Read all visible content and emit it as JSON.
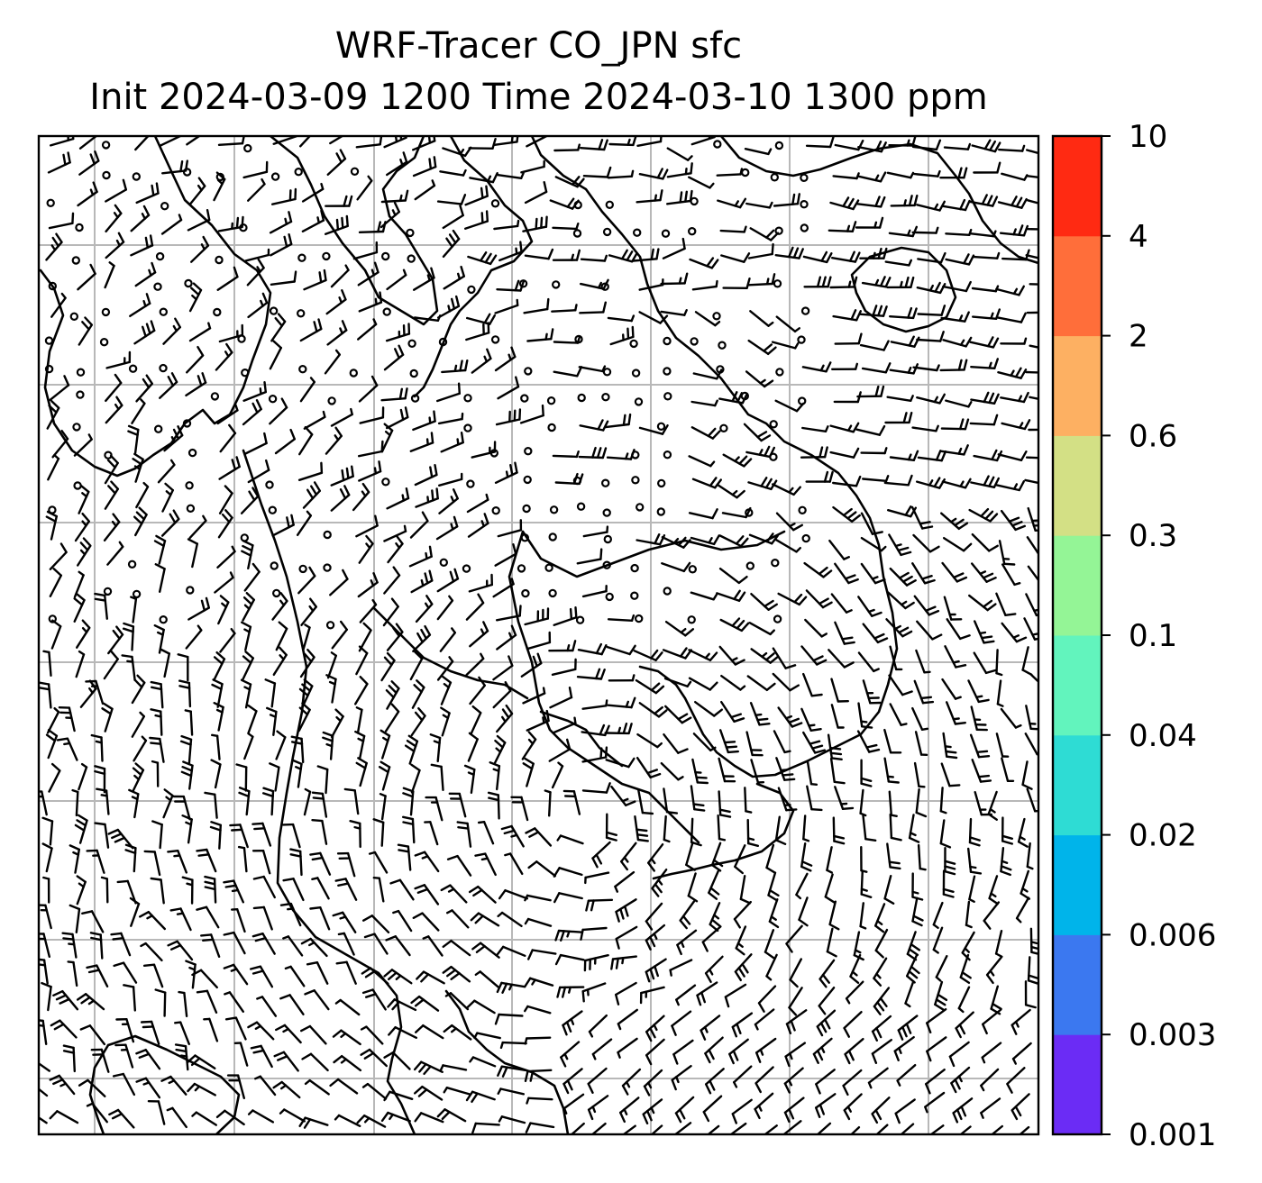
{
  "title": {
    "line1": "WRF-Tracer CO_JPN sfc",
    "line2": "Init 2024-03-09 1200 Time 2024-03-10 1300 ppm"
  },
  "colorbar": {
    "levels": [
      "0.001",
      "0.003",
      "0.006",
      "0.02",
      "0.04",
      "0.1",
      "0.3",
      "0.6",
      "2",
      "4",
      "10"
    ],
    "colors": [
      "#6b2cf5",
      "#3b78f0",
      "#00b4ea",
      "#2edcd4",
      "#62f4bd",
      "#94f596",
      "#d3e085",
      "#fdb062",
      "#ff6e3a",
      "#ff2a12"
    ]
  },
  "map": {
    "gridline_color": "#b8b8b8",
    "line_color": "#000000",
    "wind_field": "surface wind barbs",
    "coastlines": true
  }
}
